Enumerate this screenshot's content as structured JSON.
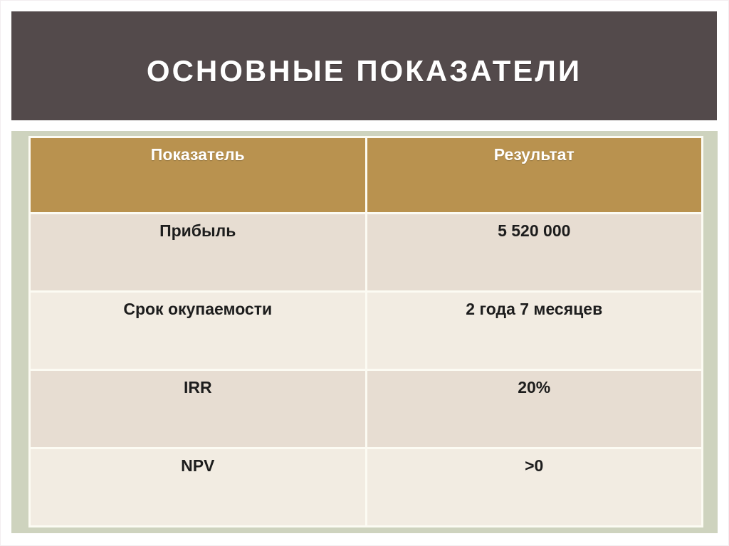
{
  "slide": {
    "title": "ОСНОВНЫЕ ПОКАЗАТЕЛИ"
  },
  "table": {
    "columns": [
      {
        "label": "Показатель"
      },
      {
        "label": "Результат"
      }
    ],
    "rows": [
      {
        "indicator": "Прибыль",
        "result": "5 520 000"
      },
      {
        "indicator": "Срок окупаемости",
        "result": "2 года 7 месяцев"
      },
      {
        "indicator": "IRR",
        "result": "20%"
      },
      {
        "indicator": "NPV",
        "result": ">0"
      }
    ]
  },
  "colors": {
    "title_bar": "#534a4b",
    "header_bg": "#b9924f",
    "row_odd_bg": "#e7ddd2",
    "row_even_bg": "#f2ece2",
    "frame_bg": "#ced3be",
    "cell_gap": "#fcfbf3",
    "header_text": "#ffffff",
    "body_text": "#1d1d1d",
    "page_bg": "#ffffff"
  }
}
